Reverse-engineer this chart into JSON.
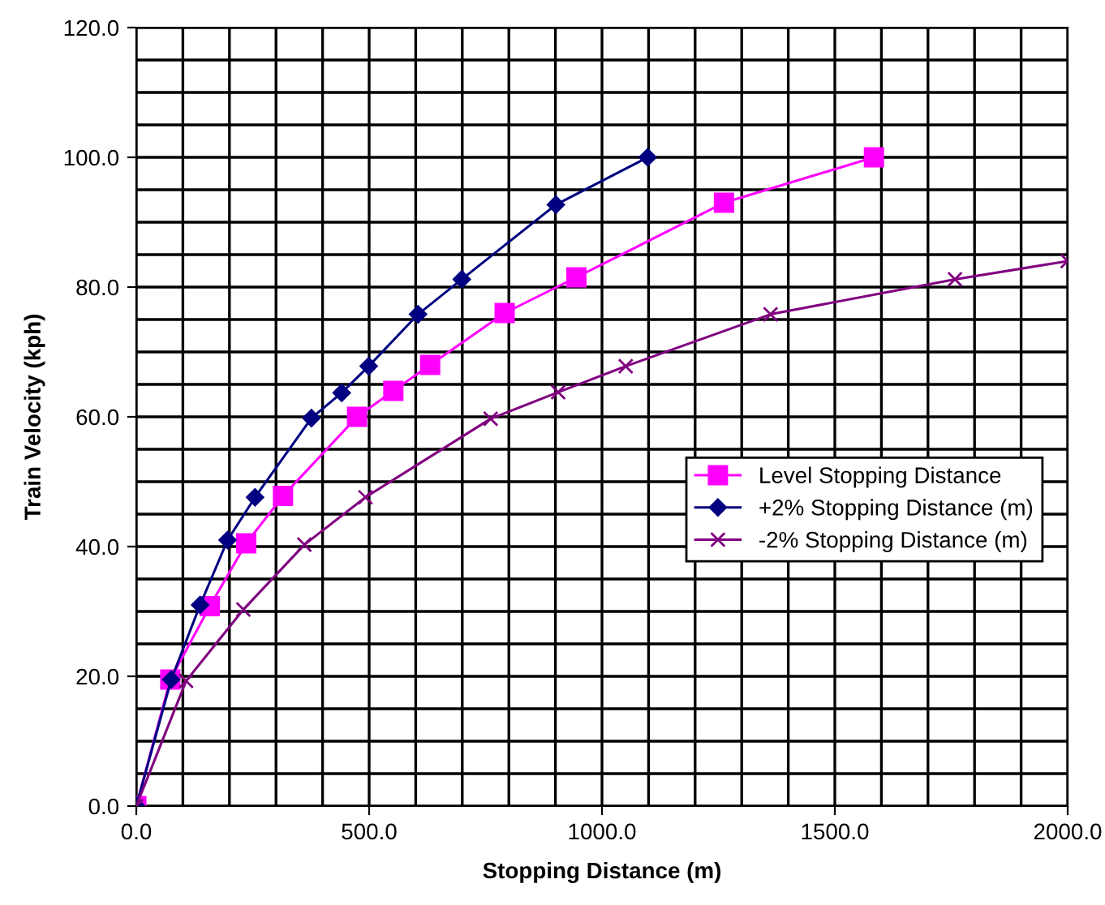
{
  "chart_data": {
    "type": "line",
    "xlabel": "Stopping Distance (m)",
    "ylabel": "Train Velocity (kph)",
    "series": [
      {
        "name": "Level Stopping Distance",
        "color": "#ff00ff",
        "marker": "square",
        "x": [
          0,
          73,
          158,
          236,
          315,
          474,
          552,
          631,
          791,
          945,
          1262,
          1584
        ],
        "values": [
          0,
          19.5,
          30.8,
          40.5,
          47.8,
          60,
          64,
          68,
          76,
          81.5,
          93,
          100
        ]
      },
      {
        "name": "+2% Stopping Distance (m)",
        "color": "#000080",
        "marker": "diamond",
        "x": [
          0,
          75,
          137,
          196,
          255,
          376,
          441,
          499,
          605,
          699,
          901,
          1098
        ],
        "values": [
          0,
          19.5,
          31,
          41,
          47.6,
          59.8,
          63.7,
          67.8,
          75.8,
          81.2,
          92.7,
          100
        ]
      },
      {
        "name": "-2% Stopping Distance (m)",
        "color": "#800080",
        "marker": "cross",
        "x": [
          0,
          107,
          230,
          361,
          492,
          761,
          906,
          1051,
          1362,
          1758,
          2000
        ],
        "values": [
          0,
          19.3,
          30.3,
          40.3,
          47.6,
          59.7,
          63.8,
          67.8,
          75.8,
          81.2,
          84
        ]
      }
    ],
    "xlim": [
      0,
      2000
    ],
    "ylim": [
      0,
      120
    ],
    "xticks": [
      {
        "value": 0,
        "label": "0.0"
      },
      {
        "value": 100,
        "label": null
      },
      {
        "value": 200,
        "label": null
      },
      {
        "value": 300,
        "label": null
      },
      {
        "value": 400,
        "label": null
      },
      {
        "value": 500,
        "label": "500.0"
      },
      {
        "value": 600,
        "label": null
      },
      {
        "value": 700,
        "label": null
      },
      {
        "value": 800,
        "label": null
      },
      {
        "value": 900,
        "label": null
      },
      {
        "value": 1000,
        "label": "1000.0"
      },
      {
        "value": 1100,
        "label": null
      },
      {
        "value": 1200,
        "label": null
      },
      {
        "value": 1300,
        "label": null
      },
      {
        "value": 1400,
        "label": null
      },
      {
        "value": 1500,
        "label": "1500.0"
      },
      {
        "value": 1600,
        "label": null
      },
      {
        "value": 1700,
        "label": null
      },
      {
        "value": 1800,
        "label": null
      },
      {
        "value": 1900,
        "label": null
      },
      {
        "value": 2000,
        "label": "2000.0"
      }
    ],
    "yticks": [
      {
        "value": 0,
        "label": "0.0"
      },
      {
        "value": 5,
        "label": null
      },
      {
        "value": 10,
        "label": null
      },
      {
        "value": 15,
        "label": null
      },
      {
        "value": 20,
        "label": "20.0"
      },
      {
        "value": 25,
        "label": null
      },
      {
        "value": 30,
        "label": null
      },
      {
        "value": 35,
        "label": null
      },
      {
        "value": 40,
        "label": "40.0"
      },
      {
        "value": 45,
        "label": null
      },
      {
        "value": 50,
        "label": null
      },
      {
        "value": 55,
        "label": null
      },
      {
        "value": 60,
        "label": "60.0"
      },
      {
        "value": 65,
        "label": null
      },
      {
        "value": 70,
        "label": null
      },
      {
        "value": 75,
        "label": null
      },
      {
        "value": 80,
        "label": "80.0"
      },
      {
        "value": 85,
        "label": null
      },
      {
        "value": 90,
        "label": null
      },
      {
        "value": 95,
        "label": null
      },
      {
        "value": 100,
        "label": "100.0"
      },
      {
        "value": 105,
        "label": null
      },
      {
        "value": 110,
        "label": null
      },
      {
        "value": 115,
        "label": null
      },
      {
        "value": 120,
        "label": "120.0"
      }
    ],
    "grid": true,
    "legend": "lower right",
    "line_style": "solid"
  }
}
